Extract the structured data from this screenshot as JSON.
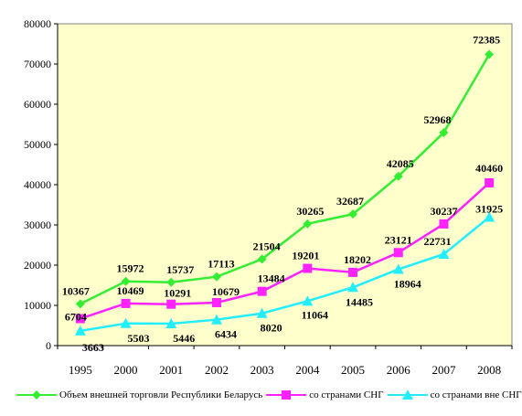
{
  "chart_data": {
    "type": "line",
    "categories": [
      "1995",
      "2000",
      "2001",
      "2002",
      "2003",
      "2004",
      "2005",
      "2006",
      "2007",
      "2008"
    ],
    "ylim": [
      0,
      80000
    ],
    "yticks": [
      0,
      10000,
      20000,
      30000,
      40000,
      50000,
      60000,
      70000,
      80000
    ],
    "grid": false,
    "legend_position": "bottom",
    "series": [
      {
        "name": "Объем внешней торговли Республики Беларусь",
        "color": "#33ee33",
        "marker": "diamond",
        "values": [
          10367,
          15972,
          15737,
          17113,
          21504,
          30265,
          32687,
          42085,
          52968,
          72385
        ]
      },
      {
        "name": "со странами СНГ",
        "color": "#ff22ff",
        "marker": "square",
        "values": [
          6704,
          10469,
          10291,
          10679,
          13484,
          19201,
          18202,
          23121,
          30237,
          40460
        ]
      },
      {
        "name": "со странами вне СНГ",
        "color": "#22eeff",
        "marker": "triangle",
        "values": [
          3663,
          5503,
          5446,
          6434,
          8020,
          11064,
          14485,
          18964,
          22731,
          31925
        ]
      }
    ]
  }
}
